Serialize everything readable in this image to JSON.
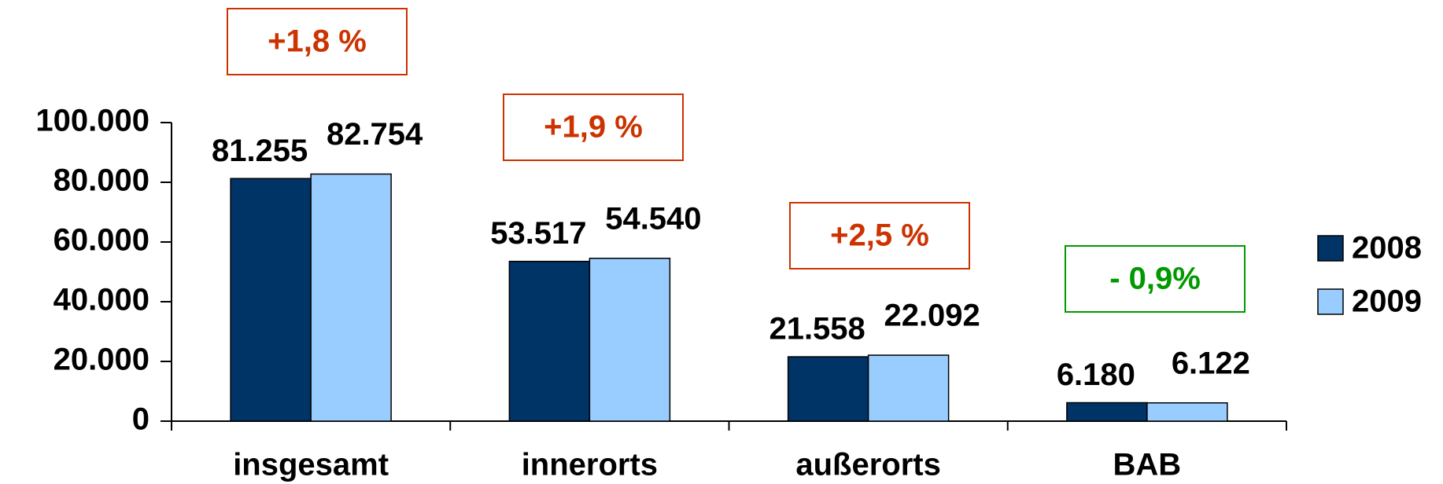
{
  "chart_data": {
    "type": "bar",
    "categories": [
      "insgesamt",
      "innerorts",
      "außerorts",
      "BAB"
    ],
    "series": [
      {
        "name": "2008",
        "color": "#003366",
        "values": [
          81255,
          53517,
          21558,
          6180
        ],
        "value_labels": [
          "81.255",
          "53.517",
          "21.558",
          "6.180"
        ]
      },
      {
        "name": "2009",
        "color": "#99ccff",
        "values": [
          82754,
          54540,
          22092,
          6122
        ],
        "value_labels": [
          "82.754",
          "54.540",
          "22.092",
          "6.122"
        ]
      }
    ],
    "ylim": [
      0,
      100000
    ],
    "yticks": [
      0,
      {
        "value": 20000,
        "label": "20.000"
      },
      {
        "value": 40000,
        "label": "40.000"
      },
      {
        "value": 60000,
        "label": "60.000"
      },
      {
        "value": 80000,
        "label": "80.000"
      },
      {
        "value": 100000,
        "label": "100.000"
      }
    ],
    "annotations": [
      {
        "text": "+1,8 %",
        "color": "#cc3300"
      },
      {
        "text": "+1,9 %",
        "color": "#cc3300"
      },
      {
        "text": "+2,5 %",
        "color": "#cc3300"
      },
      {
        "text": "- 0,9%",
        "color": "#009900"
      }
    ],
    "legend": "right"
  }
}
